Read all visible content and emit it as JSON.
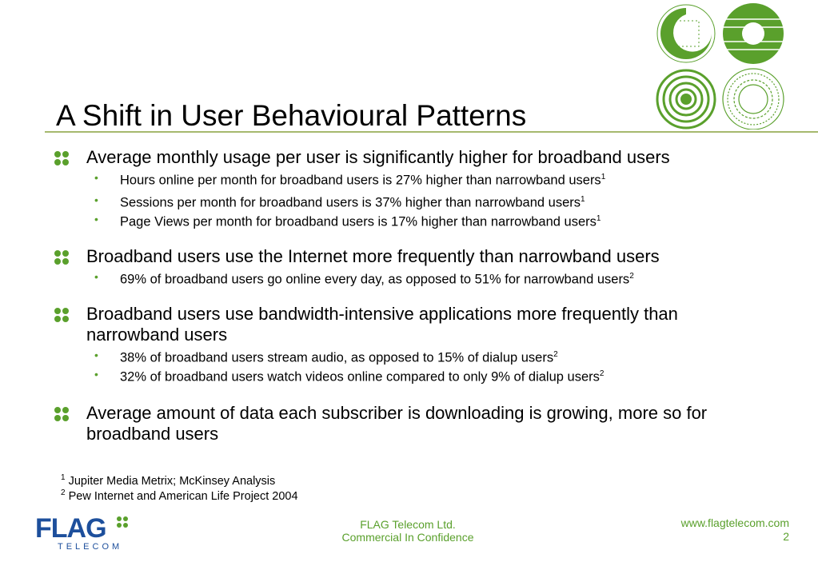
{
  "title": "A Shift in User Behavioural Patterns",
  "accent": "#5aa02c",
  "bullets": [
    {
      "text": "Average monthly usage per user is significantly higher for broadband users",
      "subs": [
        {
          "text": "Hours online per month for broadband users is 27% higher than narrowband users",
          "ref": "1"
        },
        {
          "text": "Sessions per month for broadband users is 37% higher than narrowband users",
          "ref": "1"
        },
        {
          "text": "Page Views per month for broadband users is 17% higher than narrowband users",
          "ref": "1"
        }
      ]
    },
    {
      "text": "Broadband users use the Internet more frequently than narrowband users",
      "subs": [
        {
          "text": "69% of broadband users go online every day, as opposed to 51% for narrowband users",
          "ref": "2"
        }
      ]
    },
    {
      "text": "Broadband users use bandwidth-intensive applications more frequently than narrowband users",
      "subs": [
        {
          "text": "38% of broadband users stream audio, as opposed to 15% of dialup users",
          "ref": "2"
        },
        {
          "text": "32% of broadband users watch videos online compared to only 9% of dialup users",
          "ref": "2"
        }
      ]
    },
    {
      "text": "Average amount of data each subscriber is downloading is growing, more so for broadband users",
      "subs": []
    }
  ],
  "footnotes": [
    {
      "num": "1",
      "text": "Jupiter Media Metrix; McKinsey Analysis"
    },
    {
      "num": "2",
      "text": "Pew Internet and American Life Project 2004"
    }
  ],
  "footer": {
    "logo_main": "FLAG",
    "logo_sub": "TELECOM",
    "company": "FLAG Telecom Ltd.",
    "confidential": "Commercial In Confidence",
    "website": "www.flagtelecom.com",
    "page": "2"
  }
}
